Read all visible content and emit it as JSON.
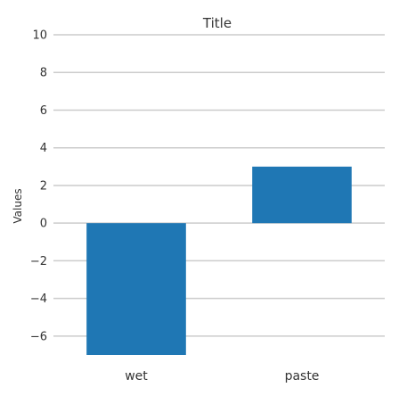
{
  "chart_data": {
    "type": "bar",
    "title": "Title",
    "xlabel": "",
    "ylabel": "Values",
    "categories": [
      "wet",
      "paste"
    ],
    "values": [
      -7,
      3
    ],
    "ylim": [
      -7,
      10
    ],
    "yticks": [
      -6,
      -4,
      -2,
      0,
      2,
      4,
      6,
      8,
      10
    ],
    "ytick_labels": [
      "−6",
      "−4",
      "−2",
      "0",
      "2",
      "4",
      "6",
      "8",
      "10"
    ],
    "grid": true,
    "bar_color": "#1f77b4",
    "grid_color": "#cccccc"
  }
}
